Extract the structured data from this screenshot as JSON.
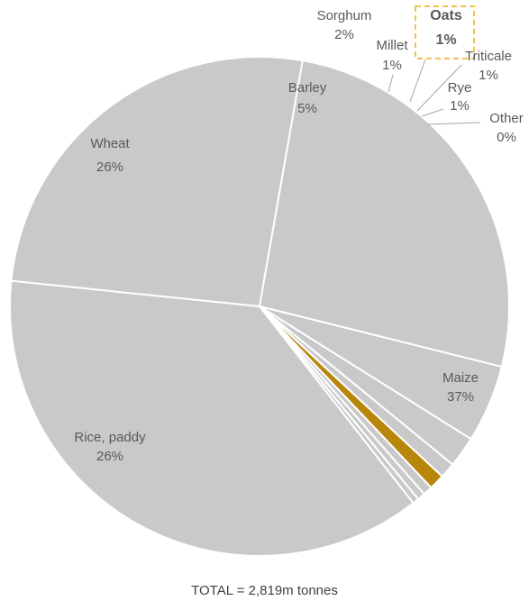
{
  "chart_data": {
    "type": "pie",
    "slices": [
      {
        "label": "Maize",
        "pct_label": "37%",
        "value": 37.0
      },
      {
        "label": "Rice, paddy",
        "pct_label": "26%",
        "value": 26.0
      },
      {
        "label": "Wheat",
        "pct_label": "26%",
        "value": 26.0
      },
      {
        "label": "Barley",
        "pct_label": "5%",
        "value": 5.0
      },
      {
        "label": "Sorghum",
        "pct_label": "2%",
        "value": 2.0
      },
      {
        "label": "Millet",
        "pct_label": "1%",
        "value": 1.0
      },
      {
        "label": "Oats",
        "pct_label": "1%",
        "value": 1.0,
        "highlight": true
      },
      {
        "label": "Triticale",
        "pct_label": "1%",
        "value": 0.6
      },
      {
        "label": "Rye",
        "pct_label": "1%",
        "value": 0.5
      },
      {
        "label": "Other",
        "pct_label": "0%",
        "value": 0.4
      }
    ],
    "total_label": "TOTAL = 2,819m tonnes"
  },
  "colors": {
    "slice": "#c9c9c9",
    "highlight": "#b8860b",
    "highlight_box": "#f2c14e",
    "edge": "#ffffff",
    "leader": "#a6a6a6"
  }
}
